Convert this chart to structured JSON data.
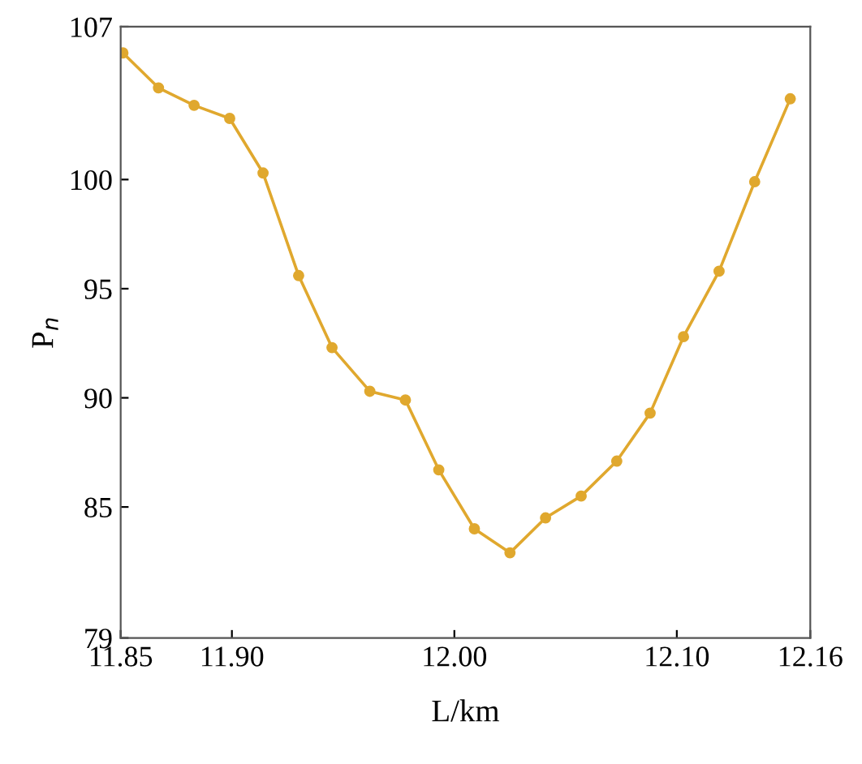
{
  "chart_data": {
    "type": "line",
    "xlabel": "L/km",
    "ylabel": "P$_{n}$",
    "x": [
      11.851,
      11.867,
      11.883,
      11.899,
      11.914,
      11.93,
      11.945,
      11.962,
      11.978,
      11.993,
      12.009,
      12.025,
      12.041,
      12.057,
      12.073,
      12.088,
      12.103,
      12.119,
      12.135,
      12.151
    ],
    "series": [
      {
        "color": "#e0a82e",
        "values": [
          105.8,
          104.2,
          103.4,
          102.8,
          100.3,
          95.6,
          92.3,
          90.3,
          89.9,
          86.7,
          84.0,
          82.9,
          84.5,
          85.5,
          87.1,
          89.3,
          92.8,
          95.8,
          99.9,
          103.7
        ]
      }
    ],
    "xlim": [
      11.85,
      12.16
    ],
    "xticks": [
      {
        "value": 11.85,
        "label": "11.85"
      },
      {
        "value": 11.9,
        "label": "11.90"
      },
      {
        "value": 12.0,
        "label": "12.00"
      },
      {
        "value": 12.1,
        "label": "12.10"
      },
      {
        "value": 12.16,
        "label": "12.16"
      }
    ],
    "ylim": [
      79,
      107
    ],
    "yticks": [
      79,
      85,
      90,
      95,
      100,
      107
    ],
    "marker": "circle",
    "grid": false,
    "legend": false
  }
}
